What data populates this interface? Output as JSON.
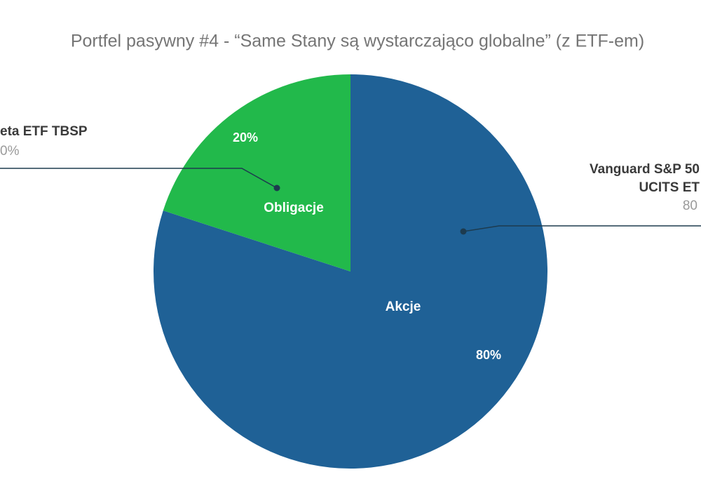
{
  "chart_data": {
    "type": "pie",
    "title": "Portfel pasywny #4 - “Same Stany są wystarczająco globalne” (z ETF-em)",
    "categories": [
      "Akcje",
      "Obligacje"
    ],
    "values": [
      80,
      20
    ],
    "value_labels": [
      "80%",
      "20%"
    ],
    "colors": [
      "#1f6196",
      "#22b94b"
    ],
    "annotations": [
      "eta ETF TBSP",
      "0%",
      "Vanguard S&P 50",
      "UCITS ET",
      "80"
    ]
  }
}
